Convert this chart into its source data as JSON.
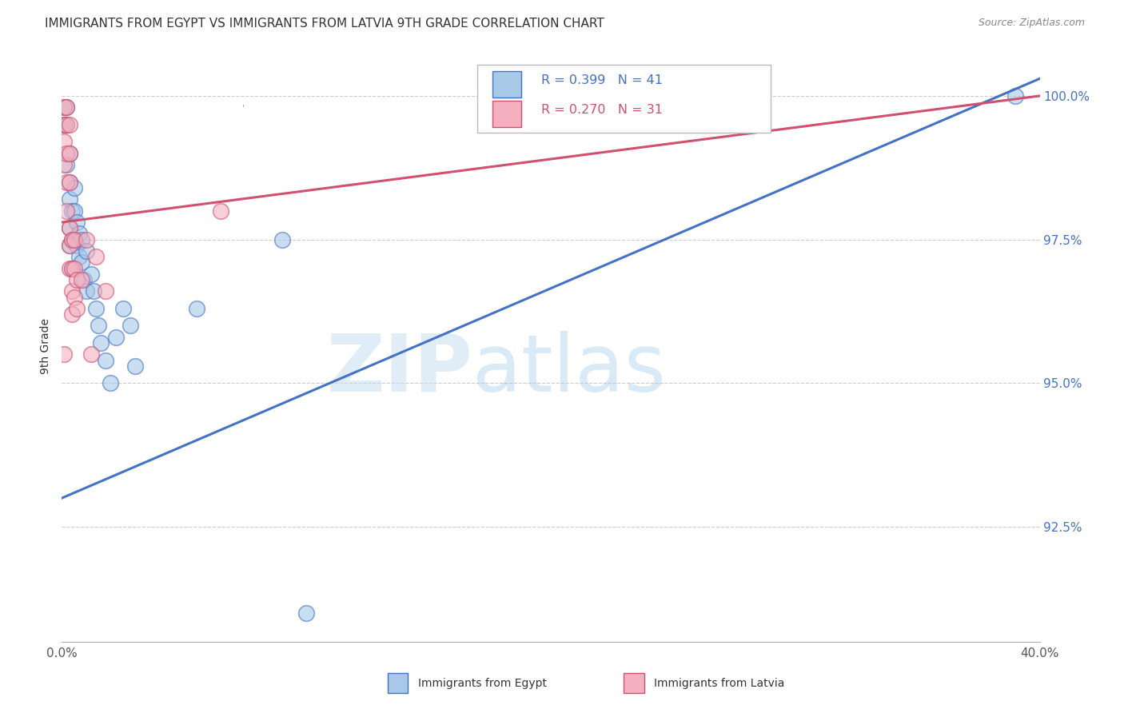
{
  "title": "IMMIGRANTS FROM EGYPT VS IMMIGRANTS FROM LATVIA 9TH GRADE CORRELATION CHART",
  "source": "Source: ZipAtlas.com",
  "ylabel": "9th Grade",
  "ylabel_right_ticks": [
    "92.5%",
    "95.0%",
    "97.5%",
    "100.0%"
  ],
  "ylabel_right_vals": [
    0.925,
    0.95,
    0.975,
    1.0
  ],
  "xlim": [
    0.0,
    0.4
  ],
  "ylim": [
    0.905,
    1.008
  ],
  "legend_blue_r": "R = 0.399",
  "legend_blue_n": "N = 41",
  "legend_pink_r": "R = 0.270",
  "legend_pink_n": "N = 31",
  "legend_label_blue": "Immigrants from Egypt",
  "legend_label_pink": "Immigrants from Latvia",
  "blue_color": "#A8C8E8",
  "pink_color": "#F4B0C0",
  "line_blue": "#4472C4",
  "line_pink": "#D05070",
  "watermark_zip": "ZIP",
  "watermark_atlas": "atlas",
  "blue_dots": [
    [
      0.001,
      0.998
    ],
    [
      0.001,
      0.995
    ],
    [
      0.002,
      0.998
    ],
    [
      0.002,
      0.995
    ],
    [
      0.002,
      0.988
    ],
    [
      0.003,
      0.99
    ],
    [
      0.003,
      0.985
    ],
    [
      0.003,
      0.982
    ],
    [
      0.003,
      0.977
    ],
    [
      0.003,
      0.974
    ],
    [
      0.004,
      0.98
    ],
    [
      0.004,
      0.975
    ],
    [
      0.004,
      0.97
    ],
    [
      0.005,
      0.984
    ],
    [
      0.005,
      0.98
    ],
    [
      0.005,
      0.975
    ],
    [
      0.006,
      0.978
    ],
    [
      0.006,
      0.974
    ],
    [
      0.007,
      0.976
    ],
    [
      0.007,
      0.972
    ],
    [
      0.008,
      0.975
    ],
    [
      0.008,
      0.971
    ],
    [
      0.009,
      0.968
    ],
    [
      0.01,
      0.973
    ],
    [
      0.01,
      0.966
    ],
    [
      0.012,
      0.969
    ],
    [
      0.013,
      0.966
    ],
    [
      0.014,
      0.963
    ],
    [
      0.015,
      0.96
    ],
    [
      0.016,
      0.957
    ],
    [
      0.018,
      0.954
    ],
    [
      0.02,
      0.95
    ],
    [
      0.022,
      0.958
    ],
    [
      0.025,
      0.963
    ],
    [
      0.028,
      0.96
    ],
    [
      0.03,
      0.953
    ],
    [
      0.055,
      0.963
    ],
    [
      0.09,
      0.975
    ],
    [
      0.1,
      0.91
    ],
    [
      0.27,
      0.998
    ],
    [
      0.39,
      1.0
    ]
  ],
  "pink_dots": [
    [
      0.001,
      0.998
    ],
    [
      0.001,
      0.995
    ],
    [
      0.001,
      0.992
    ],
    [
      0.001,
      0.988
    ],
    [
      0.002,
      0.998
    ],
    [
      0.002,
      0.995
    ],
    [
      0.002,
      0.99
    ],
    [
      0.002,
      0.985
    ],
    [
      0.002,
      0.98
    ],
    [
      0.003,
      0.995
    ],
    [
      0.003,
      0.99
    ],
    [
      0.003,
      0.985
    ],
    [
      0.003,
      0.977
    ],
    [
      0.003,
      0.974
    ],
    [
      0.003,
      0.97
    ],
    [
      0.004,
      0.975
    ],
    [
      0.004,
      0.97
    ],
    [
      0.004,
      0.966
    ],
    [
      0.004,
      0.962
    ],
    [
      0.005,
      0.975
    ],
    [
      0.005,
      0.97
    ],
    [
      0.005,
      0.965
    ],
    [
      0.006,
      0.968
    ],
    [
      0.006,
      0.963
    ],
    [
      0.008,
      0.968
    ],
    [
      0.01,
      0.975
    ],
    [
      0.012,
      0.955
    ],
    [
      0.014,
      0.972
    ],
    [
      0.018,
      0.966
    ],
    [
      0.065,
      0.98
    ],
    [
      0.001,
      0.955
    ]
  ],
  "blue_line_x": [
    0.0,
    0.4
  ],
  "blue_line_y": [
    0.93,
    1.003
  ],
  "pink_line_x": [
    0.0,
    0.4
  ],
  "pink_line_y": [
    0.978,
    1.0
  ]
}
